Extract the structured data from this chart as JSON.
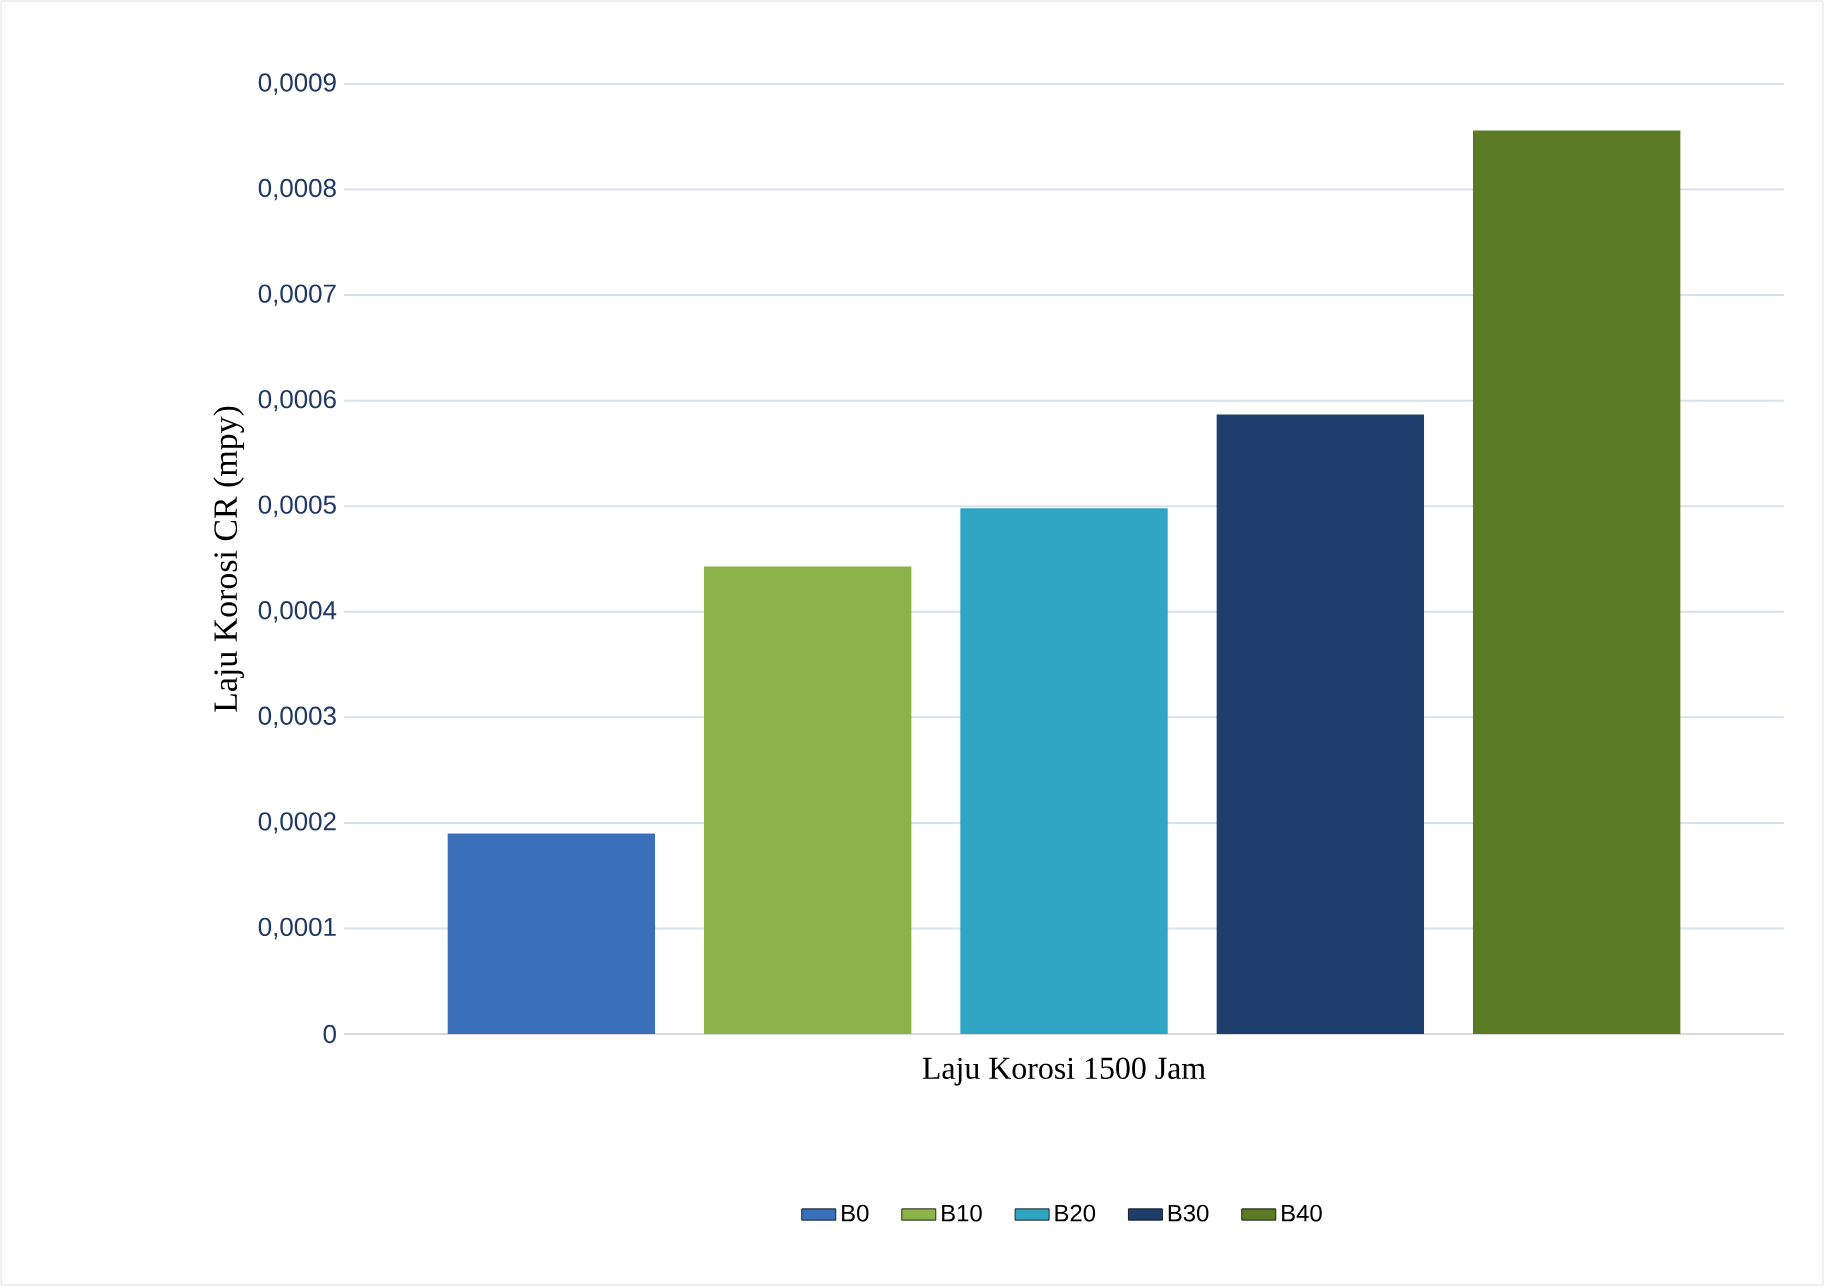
{
  "chart_data": {
    "type": "bar",
    "ylabel": "Laju Korosi CR (mpy)",
    "categories": [
      "Laju Korosi 1500 Jam"
    ],
    "series": [
      {
        "name": "B0",
        "color": "#3a70b9",
        "values": [
          0.00019
        ]
      },
      {
        "name": "B10",
        "color": "#8bb347",
        "values": [
          0.000443
        ]
      },
      {
        "name": "B20",
        "color": "#30a5c3",
        "values": [
          0.000498
        ]
      },
      {
        "name": "B30",
        "color": "#1e3f6d",
        "values": [
          0.000587
        ]
      },
      {
        "name": "B40",
        "color": "#5a7b24",
        "values": [
          0.000856
        ]
      }
    ],
    "ylim": [
      0,
      0.0009
    ],
    "yticks": [
      0,
      {
        "value": 0.0001,
        "label": "0,0001"
      },
      {
        "value": 0.0002,
        "label": "0,0002"
      },
      {
        "value": 0.0003,
        "label": "0,0003"
      },
      {
        "value": 0.0004,
        "label": "0,0004"
      },
      {
        "value": 0.0005,
        "label": "0,0005"
      },
      {
        "value": 0.0006,
        "label": "0,0006"
      },
      {
        "value": 0.0007,
        "label": "0,0007"
      },
      {
        "value": 0.0008,
        "label": "0,0008"
      },
      {
        "value": 0.0009,
        "label": "0,0009"
      }
    ],
    "grid": "y",
    "legend": "bottom"
  }
}
